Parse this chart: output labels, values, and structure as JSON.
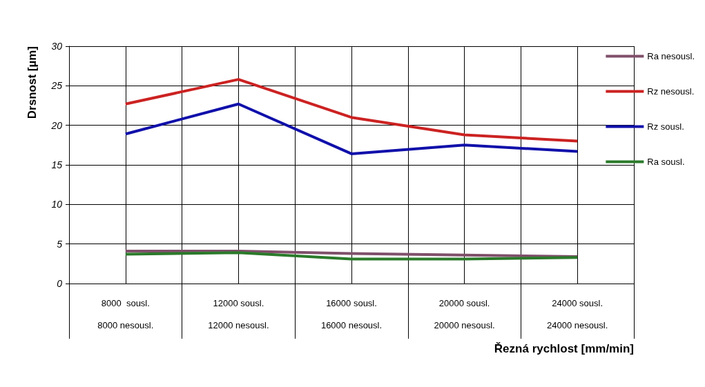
{
  "chart_data": {
    "type": "line",
    "xlabel": "Řezná rychlost [mm/min]",
    "ylabel": "Drsnost [µm]",
    "categories": [
      "8000  sousl.\n\n8000 nesousl.",
      "12000 sousl.\n\n12000 nesousl.",
      "16000 sousl.\n\n16000 nesousl.",
      "20000 sousl.\n\n20000 nesousl.",
      "24000 sousl.\n\n24000 nesousl."
    ],
    "series": [
      {
        "name": "Ra nesousl.",
        "color": "#7f4f6a",
        "values": [
          4.1,
          4.1,
          3.8,
          3.6,
          3.4
        ]
      },
      {
        "name": "Rz nesousl.",
        "color": "#cc2222",
        "values": [
          22.7,
          25.8,
          21.0,
          18.8,
          18.0
        ]
      },
      {
        "name": "Rz sousl.",
        "color": "#1010aa",
        "values": [
          18.9,
          22.7,
          16.4,
          17.5,
          16.7
        ]
      },
      {
        "name": "Ra sousl.",
        "color": "#2a7a2a",
        "values": [
          3.7,
          3.9,
          3.1,
          3.1,
          3.3
        ]
      }
    ],
    "ylim": [
      0,
      30
    ],
    "yticks": [
      0,
      5,
      10,
      15,
      20,
      25,
      30
    ],
    "grid": true,
    "legend": "right",
    "marker": "none",
    "line_style": "solid"
  }
}
